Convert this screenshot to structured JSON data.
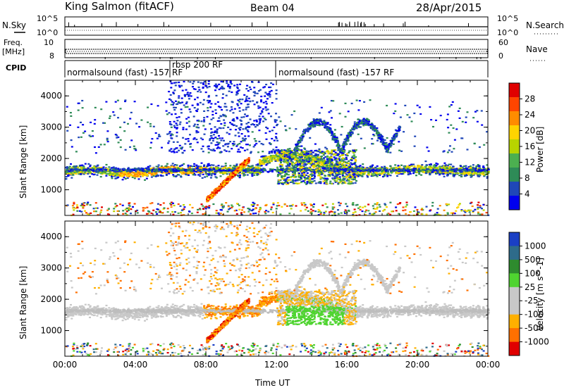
{
  "header": {
    "station": "King Salmon (fitACF)",
    "beam": "Beam 04",
    "date": "28/Apr/2015"
  },
  "left_labels": {
    "nsky": "N.Sky",
    "freq": "Freq.",
    "mhz": "[MHz]",
    "cpid": "CPID"
  },
  "right_labels": {
    "nsearch": "N.Search",
    "nave": "Nave"
  },
  "tick_text": {
    "sky_top": "10^5",
    "sky_bottom": "10^0",
    "freq_top": "10",
    "freq_bottom": "8",
    "nsearch_top": "10^5",
    "nsearch_bottom": "10^0",
    "nave_top": "60",
    "nave_bottom": "0"
  },
  "cpid": {
    "seg1": "normalsound (fast) -157 RF",
    "seg2": "rbsp 200 RF",
    "seg3": "normalsound (fast) -157 RF"
  },
  "colors": {
    "power": [
      "#0000ee",
      "#1f47b8",
      "#2e8b57",
      "#4caf50",
      "#b8d400",
      "#ffd400",
      "#ff8c00",
      "#ff4500",
      "#e00000"
    ],
    "velocity": [
      "#1a3fc4",
      "#2e6b8a",
      "#2e8b2e",
      "#4fd430",
      "#c8c8c8",
      "#c8c8c8",
      "#ffb000",
      "#ff7000",
      "#e00000"
    ],
    "ground": "#bdbdbd"
  },
  "chart_data": [
    {
      "type": "heatmap",
      "panel": "power",
      "xlabel": "Time UT",
      "ylabel": "Slant Range [km]",
      "x_ticks": [
        "00:00",
        "04:00",
        "08:00",
        "12:00",
        "16:00",
        "20:00",
        "00:00"
      ],
      "y_ticks": [
        1000,
        2000,
        3000,
        4000
      ],
      "xlim": [
        0,
        24
      ],
      "ylim": [
        180,
        4500
      ],
      "colorbar_label": "Power [dB]",
      "colorbar_ticks": [
        "4",
        "8",
        "12",
        "16",
        "20",
        "24",
        "28"
      ],
      "colorbar_range": [
        0,
        30
      ]
    },
    {
      "type": "heatmap",
      "panel": "velocity",
      "xlabel": "Time UT",
      "ylabel": "Slant Range [km]",
      "x_ticks": [
        "00:00",
        "04:00",
        "08:00",
        "12:00",
        "16:00",
        "20:00",
        "00:00"
      ],
      "y_ticks": [
        1000,
        2000,
        3000,
        4000
      ],
      "xlim": [
        0,
        24
      ],
      "ylim": [
        180,
        4500
      ],
      "colorbar_label": "Velocity [m s^-1]",
      "colorbar_ticks": [
        "1000",
        "500",
        "100",
        "25",
        "-25",
        "-100",
        "-500",
        "-1000"
      ]
    }
  ]
}
